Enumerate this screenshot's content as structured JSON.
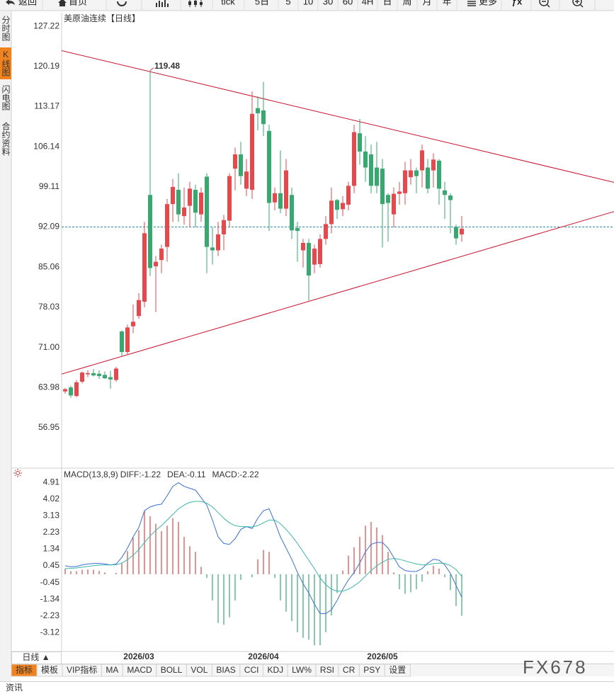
{
  "toolbar": [
    "返回",
    "首页",
    "tick",
    "5日",
    "5",
    "10",
    "30",
    "60",
    "4H",
    "日",
    "周",
    "月",
    "年",
    "更多",
    "ƒx"
  ],
  "sidebar": [
    "分时图",
    "K线图",
    "闪电图",
    "合约资料"
  ],
  "sidebar_active": 1,
  "period_button": "日线 ▲",
  "tabs": [
    "指标",
    "模板",
    "VIP指标",
    "MA",
    "MACD",
    "BOLL",
    "VOL",
    "BIAS",
    "CCI",
    "KDJ",
    "LW%",
    "RSI",
    "CR",
    "PSY",
    "设置"
  ],
  "tabs_active": 0,
  "footer": "资讯",
  "watermark": "FX678",
  "chart_data": [
    {
      "type": "candlestick",
      "title": "美原油连续",
      "period": "【日线】",
      "categories": [
        null,
        null,
        null,
        null,
        null,
        null,
        null,
        null,
        null,
        null,
        null,
        null,
        null,
        "2026/03",
        null,
        null,
        null,
        null,
        null,
        null,
        null,
        null,
        null,
        null,
        null,
        null,
        null,
        null,
        null,
        null,
        null,
        null,
        null,
        null,
        null,
        "2026/04",
        null,
        null,
        null,
        null,
        null,
        null,
        null,
        null,
        null,
        null,
        null,
        null,
        null,
        null,
        null,
        null,
        null,
        null,
        null,
        null,
        "2026/05",
        null,
        null,
        null,
        null,
        null,
        null,
        null,
        null,
        null,
        null,
        null,
        null,
        null,
        null
      ],
      "open": [
        63.3,
        64.0,
        62.5,
        65.0,
        66.3,
        66.5,
        66.4,
        66.2,
        65.8,
        65.3,
        73.8,
        70.2,
        74.7,
        76.5,
        79.0,
        97.7,
        85.2,
        86.3,
        88.6,
        96.1,
        98.6,
        94.0,
        95.8,
        98.6,
        94.3,
        100.9,
        88.5,
        88.0,
        90.8,
        93.2,
        102.3,
        104.8,
        98.8,
        98.6,
        112.9,
        112.5,
        108.9,
        96.4,
        98.0,
        95.3,
        97.7,
        91.9,
        88.0,
        89.3,
        85.5,
        85.6,
        90.0,
        92.6,
        96.8,
        95.2,
        96.0,
        99.3,
        108.5,
        105.3,
        104.8,
        102.5,
        102.3,
        97.7,
        94.3,
        97.9,
        98.0,
        100.8,
        102.0,
        102.0,
        102.5,
        102.0,
        103.7,
        98.5,
        97.6,
        92.1,
        90.8
      ],
      "high": [
        63.9,
        64.3,
        65.3,
        66.8,
        67.0,
        67.2,
        67.0,
        66.8,
        66.9,
        67.6,
        74.0,
        75.0,
        78.5,
        80.5,
        93.0,
        119.48,
        87.0,
        89.0,
        97.0,
        100.5,
        101.5,
        99.0,
        100.0,
        99.5,
        99.0,
        101.5,
        92.0,
        93.0,
        94.2,
        101.5,
        106.0,
        107.0,
        104.0,
        115.8,
        115.0,
        117.5,
        110.0,
        99.0,
        105.5,
        104.0,
        99.0,
        93.0,
        90.0,
        90.0,
        89.0,
        90.8,
        94.0,
        99.0,
        97.0,
        97.5,
        100.0,
        110.0,
        111.0,
        108.0,
        106.5,
        107.0,
        104.0,
        98.0,
        99.0,
        100.0,
        103.5,
        104.0,
        102.5,
        106.5,
        104.0,
        105.0,
        104.0,
        100.0,
        98.0,
        92.5,
        94.0
      ],
      "low": [
        62.9,
        62.2,
        62.3,
        64.7,
        65.8,
        65.9,
        65.5,
        65.5,
        63.8,
        65.0,
        69.5,
        69.8,
        73.5,
        76.0,
        78.0,
        83.5,
        77.2,
        84.0,
        86.0,
        93.0,
        93.0,
        92.5,
        92.0,
        92.0,
        93.0,
        84.0,
        85.5,
        87.0,
        88.0,
        92.0,
        98.5,
        99.5,
        97.5,
        97.0,
        109.0,
        108.0,
        91.4,
        95.0,
        94.5,
        94.0,
        90.0,
        86.0,
        85.0,
        79.2,
        84.0,
        85.0,
        89.0,
        91.0,
        93.5,
        94.0,
        95.0,
        98.0,
        103.0,
        100.0,
        98.0,
        98.0,
        88.5,
        89.5,
        92.0,
        96.0,
        96.0,
        99.5,
        98.0,
        99.0,
        98.0,
        99.0,
        96.0,
        93.5,
        91.0,
        89.0,
        89.5
      ],
      "close": [
        63.7,
        62.6,
        64.9,
        66.6,
        66.5,
        66.1,
        66.0,
        65.6,
        65.4,
        67.3,
        70.2,
        74.5,
        75.5,
        79.3,
        91.0,
        84.9,
        86.0,
        88.3,
        96.1,
        99.1,
        94.3,
        95.5,
        98.8,
        94.6,
        98.1,
        88.6,
        88.0,
        90.8,
        93.3,
        101.0,
        104.8,
        101.0,
        101.8,
        111.9,
        112.0,
        110.1,
        96.3,
        98.0,
        95.3,
        102.0,
        91.5,
        91.4,
        89.3,
        83.6,
        88.3,
        90.0,
        92.6,
        96.7,
        95.1,
        96.3,
        99.3,
        108.7,
        105.3,
        102.5,
        99.3,
        99.3,
        96.1,
        96.3,
        97.9,
        98.3,
        102.0,
        102.0,
        101.0,
        105.5,
        98.8,
        103.9,
        98.8,
        97.7,
        96.8,
        90.1,
        91.8
      ],
      "up_color": "#e8474c",
      "down_color": "#35a96f",
      "ylim": [
        50.0,
        129.6
      ],
      "yticks": [
        56.95,
        63.98,
        {
          "value": 71,
          "label": "71.00"
        },
        78.03,
        85.06,
        92.09,
        99.11,
        106.14,
        113.17,
        120.19,
        127.22
      ],
      "grid": false,
      "reference_line": 92.09,
      "reference_color": "#2a8a9e",
      "max_label": true,
      "max_label_color": "#e03a3e",
      "trend_lines": [
        {
          "color": "#c8102e",
          "points": [
            [
              -0.75,
              123.0
            ],
            [
              96.9,
              99.9
            ]
          ]
        },
        {
          "color": "#c8102e",
          "points": [
            [
              -0.75,
              66.3
            ],
            [
              96.9,
              94.8
            ]
          ]
        }
      ]
    },
    {
      "type": "macd",
      "title": "MACD(13,8,9)",
      "ylim": [
        -4.13,
        5.64
      ],
      "yticks": [
        4.91,
        4.02,
        3.13,
        2.23,
        1.34,
        0.45,
        -0.45,
        -1.34,
        -2.23,
        -3.12
      ],
      "series": [
        {
          "name": "DIFF:-1.22",
          "color": "#3a6fd8",
          "values": [
            0.45,
            0.4,
            0.42,
            0.5,
            0.55,
            0.58,
            0.58,
            0.55,
            0.5,
            0.55,
            0.9,
            1.4,
            2.0,
            2.5,
            3.4,
            3.6,
            3.7,
            3.75,
            4.2,
            4.7,
            4.9,
            4.7,
            4.6,
            4.5,
            4.1,
            3.7,
            2.9,
            2.0,
            1.65,
            1.6,
            1.9,
            2.4,
            2.55,
            2.45,
            3.0,
            3.4,
            3.5,
            2.8,
            2.0,
            1.4,
            0.8,
            0.1,
            -0.5,
            -1.0,
            -1.6,
            -2.1,
            -2.1,
            -1.9,
            -1.4,
            -0.8,
            -0.3,
            0.1,
            0.6,
            1.2,
            1.6,
            1.7,
            1.7,
            1.4,
            0.9,
            0.4,
            0.2,
            0.15,
            0.15,
            0.3,
            0.6,
            0.8,
            0.75,
            0.5,
            0.05,
            -0.6,
            -1.22
          ]
        },
        {
          "name": "DEA:-0.11",
          "color": "#3bb6a8",
          "values": [
            0.3,
            0.32,
            0.34,
            0.38,
            0.42,
            0.46,
            0.49,
            0.5,
            0.5,
            0.51,
            0.6,
            0.78,
            1.02,
            1.32,
            1.7,
            2.05,
            2.35,
            2.6,
            2.9,
            3.2,
            3.5,
            3.7,
            3.85,
            3.9,
            3.9,
            3.8,
            3.6,
            3.3,
            3.0,
            2.75,
            2.6,
            2.55,
            2.55,
            2.53,
            2.6,
            2.75,
            2.9,
            2.9,
            2.7,
            2.4,
            2.05,
            1.65,
            1.2,
            0.75,
            0.3,
            -0.2,
            -0.55,
            -0.8,
            -0.9,
            -0.9,
            -0.8,
            -0.62,
            -0.4,
            -0.1,
            0.2,
            0.45,
            0.65,
            0.8,
            0.85,
            0.8,
            0.72,
            0.63,
            0.55,
            0.5,
            0.52,
            0.57,
            0.6,
            0.58,
            0.47,
            0.25,
            -0.11
          ]
        }
      ],
      "histogram": {
        "name": "MACD:-2.22",
        "color": "#3399cc",
        "up_color": "#d84848",
        "down_color": "#3aa872",
        "values": [
          0.3,
          0.16,
          0.16,
          0.24,
          0.26,
          0.24,
          0.18,
          0.1,
          0.0,
          0.08,
          0.6,
          1.24,
          1.96,
          2.36,
          3.4,
          3.1,
          2.7,
          2.3,
          2.6,
          3.0,
          2.8,
          2.0,
          1.5,
          1.2,
          0.4,
          -0.2,
          -1.4,
          -2.6,
          -2.7,
          -2.3,
          -1.4,
          -0.3,
          0.0,
          -0.16,
          0.8,
          1.3,
          1.2,
          -0.2,
          -1.4,
          -2.0,
          -2.5,
          -3.1,
          -3.4,
          -3.5,
          -3.8,
          -3.8,
          -3.1,
          -2.2,
          -1.0,
          0.2,
          1.0,
          1.44,
          2.0,
          2.6,
          2.8,
          2.5,
          2.1,
          1.2,
          0.1,
          -0.8,
          -1.04,
          -0.96,
          -0.8,
          -0.4,
          0.16,
          0.46,
          0.3,
          -0.16,
          -0.84,
          -1.7,
          -2.22
        ]
      }
    }
  ]
}
